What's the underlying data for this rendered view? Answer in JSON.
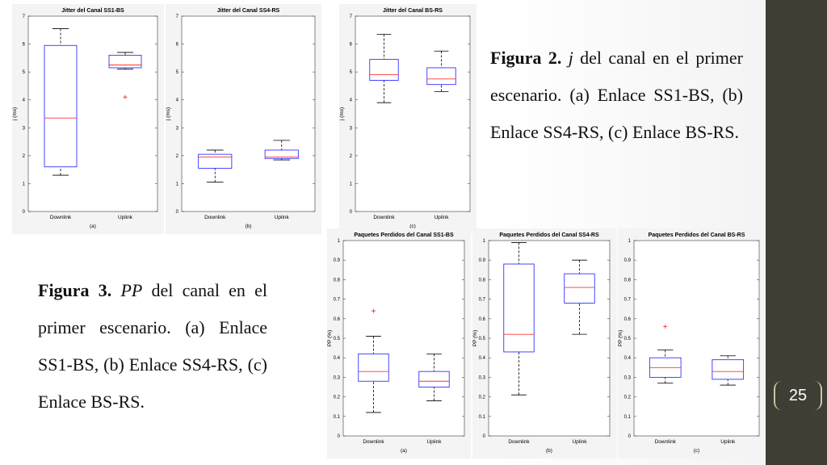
{
  "chart_data": [
    {
      "type": "box",
      "title": "Jitter del Canal SS1-BS",
      "ylabel": "j (ms)",
      "sublabel": "(a)",
      "categories": [
        "Downlink",
        "Uplink"
      ],
      "ylim": [
        0,
        7
      ],
      "yticks": [
        0,
        1,
        2,
        3,
        4,
        5,
        6,
        7
      ],
      "box_color": "#3333ff",
      "median_color": "#ff3333",
      "boxes": [
        {
          "whislo": 1.3,
          "q1": 1.6,
          "med": 3.35,
          "q3": 5.95,
          "whishi": 6.55,
          "fliers": []
        },
        {
          "whislo": 5.1,
          "q1": 5.15,
          "med": 5.25,
          "q3": 5.6,
          "whishi": 5.7,
          "fliers": [
            4.1
          ]
        }
      ]
    },
    {
      "type": "box",
      "title": "Jitter del Canal SS4-RS",
      "ylabel": "j (ms)",
      "sublabel": "(b)",
      "categories": [
        "Downlink",
        "Uplink"
      ],
      "ylim": [
        0,
        7
      ],
      "yticks": [
        0,
        1,
        2,
        3,
        4,
        5,
        6,
        7
      ],
      "box_color": "#3333ff",
      "median_color": "#ff3333",
      "boxes": [
        {
          "whislo": 1.05,
          "q1": 1.55,
          "med": 1.95,
          "q3": 2.05,
          "whishi": 2.2,
          "fliers": []
        },
        {
          "whislo": 1.85,
          "q1": 1.9,
          "med": 1.95,
          "q3": 2.2,
          "whishi": 2.55,
          "fliers": []
        }
      ]
    },
    {
      "type": "box",
      "title": "Jitter del Canal BS-RS",
      "ylabel": "j (ms)",
      "sublabel": "(c)",
      "categories": [
        "Downlink",
        "Uplink"
      ],
      "ylim": [
        0,
        7
      ],
      "yticks": [
        0,
        1,
        2,
        3,
        4,
        5,
        6,
        7
      ],
      "box_color": "#3333ff",
      "median_color": "#ff3333",
      "boxes": [
        {
          "whislo": 3.9,
          "q1": 4.7,
          "med": 4.9,
          "q3": 5.45,
          "whishi": 6.35,
          "fliers": []
        },
        {
          "whislo": 4.3,
          "q1": 4.55,
          "med": 4.75,
          "q3": 5.15,
          "whishi": 5.75,
          "fliers": []
        }
      ]
    },
    {
      "type": "box",
      "title": "Paquetes Perdidos del Canal SS1-BS",
      "ylabel": "PP (%)",
      "sublabel": "(a)",
      "categories": [
        "Downlink",
        "Uplink"
      ],
      "ylim": [
        0,
        1
      ],
      "yticks": [
        0,
        0.1,
        0.2,
        0.3,
        0.4,
        0.5,
        0.6,
        0.7,
        0.8,
        0.9,
        1
      ],
      "box_color": "#3333ff",
      "median_color": "#ff3333",
      "boxes": [
        {
          "whislo": 0.12,
          "q1": 0.28,
          "med": 0.33,
          "q3": 0.42,
          "whishi": 0.51,
          "fliers": [
            0.64
          ]
        },
        {
          "whislo": 0.18,
          "q1": 0.25,
          "med": 0.28,
          "q3": 0.33,
          "whishi": 0.42,
          "fliers": []
        }
      ]
    },
    {
      "type": "box",
      "title": "Paquetes Perdidos del Canal SS4-RS",
      "ylabel": "PP (%)",
      "sublabel": "(b)",
      "categories": [
        "Downlink",
        "Uplink"
      ],
      "ylim": [
        0,
        1
      ],
      "yticks": [
        0,
        0.1,
        0.2,
        0.3,
        0.4,
        0.5,
        0.6,
        0.7,
        0.8,
        0.9,
        1
      ],
      "box_color": "#3333ff",
      "median_color": "#ff3333",
      "boxes": [
        {
          "whislo": 0.21,
          "q1": 0.43,
          "med": 0.52,
          "q3": 0.88,
          "whishi": 0.99,
          "fliers": []
        },
        {
          "whislo": 0.52,
          "q1": 0.68,
          "med": 0.76,
          "q3": 0.83,
          "whishi": 0.9,
          "fliers": []
        }
      ]
    },
    {
      "type": "box",
      "title": "Paquetes Perdidos del Canal BS-RS",
      "ylabel": "PP (%)",
      "sublabel": "(c)",
      "categories": [
        "Downlink",
        "Uplink"
      ],
      "ylim": [
        0,
        1
      ],
      "yticks": [
        0,
        0.1,
        0.2,
        0.3,
        0.4,
        0.5,
        0.6,
        0.7,
        0.8,
        0.9,
        1
      ],
      "box_color": "#3333ff",
      "median_color": "#ff3333",
      "boxes": [
        {
          "whislo": 0.27,
          "q1": 0.3,
          "med": 0.35,
          "q3": 0.4,
          "whishi": 0.44,
          "fliers": [
            0.56
          ]
        },
        {
          "whislo": 0.26,
          "q1": 0.29,
          "med": 0.33,
          "q3": 0.39,
          "whishi": 0.41,
          "fliers": []
        }
      ]
    }
  ],
  "figure2": {
    "label": "Figura 2.",
    "symbol": "j",
    "text": "del canal en el primer escenario. (a) Enlace SS1-BS, (b) Enlace SS4-RS, (c) Enlace BS-RS."
  },
  "figure3": {
    "label": "Figura 3.",
    "symbol": "PP",
    "text": "del canal en el primer escenario. (a) Enlace SS1-BS, (b) Enlace SS4-RS, (c) Enlace BS-RS."
  },
  "page_number": "25"
}
